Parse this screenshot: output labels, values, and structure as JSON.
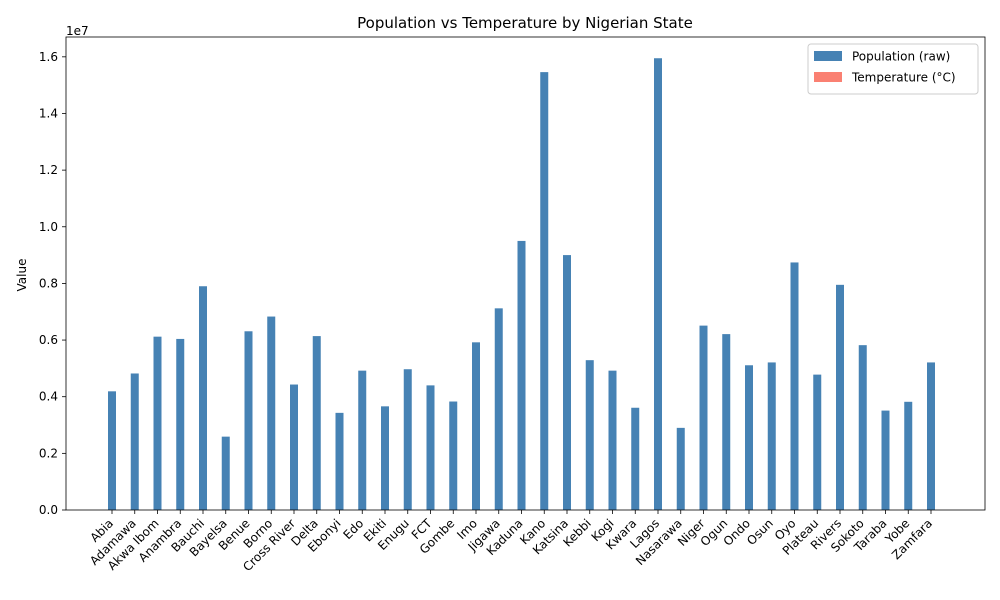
{
  "chart_data": {
    "type": "bar",
    "title": "Population vs Temperature by Nigerian State",
    "xlabel": "",
    "ylabel": "Value",
    "offset_label": "1e7",
    "ylim": [
      0,
      16700000
    ],
    "yticks": [
      0,
      2000000,
      4000000,
      6000000,
      8000000,
      10000000,
      12000000,
      14000000,
      16000000
    ],
    "ytick_labels": [
      "0.0",
      "0.2",
      "0.4",
      "0.6",
      "0.8",
      "1.0",
      "1.2",
      "1.4",
      "1.6"
    ],
    "categories": [
      "Abia",
      "Adamawa",
      "Akwa Ibom",
      "Anambra",
      "Bauchi",
      "Bayelsa",
      "Benue",
      "Borno",
      "Cross River",
      "Delta",
      "Ebonyi",
      "Edo",
      "Ekiti",
      "Enugu",
      "FCT",
      "Gombe",
      "Imo",
      "Jigawa",
      "Kaduna",
      "Kano",
      "Katsina",
      "Kebbi",
      "Kogi",
      "Kwara",
      "Lagos",
      "Nasarawa",
      "Niger",
      "Ogun",
      "Ondo",
      "Osun",
      "Oyo",
      "Plateau",
      "Rivers",
      "Sokoto",
      "Taraba",
      "Yobe",
      "Zamfara"
    ],
    "series": [
      {
        "name": "Population (raw)",
        "color": "#4682b4",
        "values": [
          4190000,
          4820000,
          6120000,
          6040000,
          7900000,
          2590000,
          6310000,
          6830000,
          4430000,
          6140000,
          3430000,
          4920000,
          3660000,
          4970000,
          4400000,
          3830000,
          5920000,
          7120000,
          9500000,
          15460000,
          9000000,
          5290000,
          4920000,
          3610000,
          15950000,
          2900000,
          6510000,
          6210000,
          5110000,
          5210000,
          8740000,
          4780000,
          7950000,
          5820000,
          3510000,
          3820000,
          5210000
        ]
      },
      {
        "name": "Temperature (°C)",
        "color": "#fa8072",
        "values": [
          27,
          28,
          27,
          27,
          27,
          27,
          28,
          28,
          27,
          27,
          27,
          27,
          26,
          26,
          26,
          27,
          27,
          28,
          25,
          27,
          28,
          29,
          27,
          27,
          27,
          26,
          28,
          27,
          26,
          26,
          27,
          23,
          27,
          29,
          28,
          28,
          28
        ]
      }
    ],
    "legend_position": "upper right",
    "grid": false
  }
}
